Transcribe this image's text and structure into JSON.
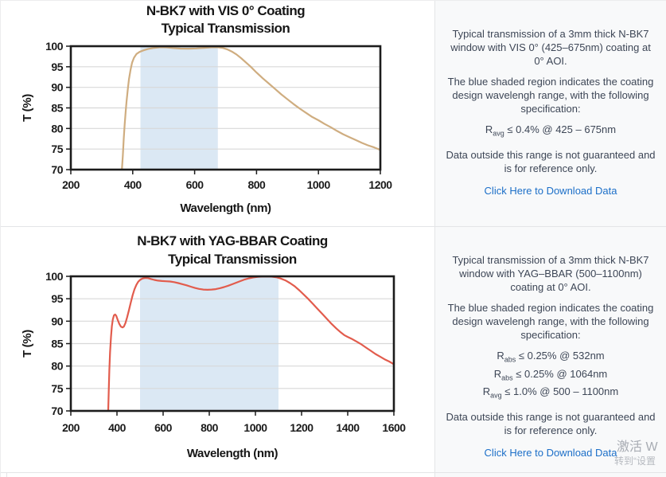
{
  "colors": {
    "vis_curve": "#cfad80",
    "yag_curve": "#e25c4d",
    "shaded_region": "#dbe8f4",
    "gridline": "#d8d8d8",
    "plot_border": "#1c1c1c",
    "panel_bg": "#f8f9fa",
    "panel_text": "#3d4656",
    "link": "#1c6fc8"
  },
  "chart_data": [
    {
      "type": "line",
      "title_line1": "N-BK7 with VIS 0° Coating",
      "title_line2": "Typical Transmission",
      "xlabel": "Wavelength (nm)",
      "ylabel": "T (%)",
      "xlim": [
        200,
        1200
      ],
      "ylim": [
        70,
        100
      ],
      "x_ticks": [
        200,
        400,
        600,
        800,
        1000,
        1200
      ],
      "y_ticks": [
        70,
        75,
        80,
        85,
        90,
        95,
        100
      ],
      "grid": "horizontal",
      "legend": "none",
      "shaded_region": {
        "from": 425,
        "to": 675
      },
      "series": [
        {
          "name": "VIS 0° coating transmission",
          "points": [
            [
              365,
              70
            ],
            [
              368,
              73.5
            ],
            [
              371,
              77.5
            ],
            [
              374,
              81
            ],
            [
              377,
              84
            ],
            [
              380,
              86.5
            ],
            [
              384,
              89.5
            ],
            [
              388,
              92
            ],
            [
              393,
              94.3
            ],
            [
              398,
              96
            ],
            [
              404,
              97.2
            ],
            [
              412,
              98.1
            ],
            [
              422,
              98.6
            ],
            [
              435,
              99
            ],
            [
              450,
              99.35
            ],
            [
              470,
              99.6
            ],
            [
              490,
              99.75
            ],
            [
              510,
              99.7
            ],
            [
              530,
              99.55
            ],
            [
              555,
              99.42
            ],
            [
              580,
              99.4
            ],
            [
              605,
              99.45
            ],
            [
              630,
              99.6
            ],
            [
              655,
              99.72
            ],
            [
              675,
              99.75
            ],
            [
              690,
              99.6
            ],
            [
              705,
              99.25
            ],
            [
              720,
              98.7
            ],
            [
              735,
              98
            ],
            [
              750,
              97.1
            ],
            [
              765,
              96.1
            ],
            [
              780,
              95.1
            ],
            [
              800,
              93.6
            ],
            [
              820,
              92.2
            ],
            [
              840,
              90.9
            ],
            [
              860,
              89.6
            ],
            [
              880,
              88.3
            ],
            [
              900,
              87.1
            ],
            [
              920,
              85.9
            ],
            [
              940,
              84.8
            ],
            [
              960,
              83.8
            ],
            [
              980,
              82.8
            ],
            [
              1000,
              82
            ],
            [
              1020,
              81.1
            ],
            [
              1040,
              80.3
            ],
            [
              1060,
              79.4
            ],
            [
              1080,
              78.6
            ],
            [
              1100,
              77.9
            ],
            [
              1120,
              77.2
            ],
            [
              1140,
              76.5
            ],
            [
              1160,
              75.9
            ],
            [
              1180,
              75.4
            ],
            [
              1200,
              74.8
            ]
          ]
        }
      ]
    },
    {
      "type": "line",
      "title_line1": "N-BK7 with YAG-BBAR Coating",
      "title_line2": "Typical Transmission",
      "xlabel": "Wavelength (nm)",
      "ylabel": "T (%)",
      "xlim": [
        200,
        1600
      ],
      "ylim": [
        70,
        100
      ],
      "x_ticks": [
        200,
        400,
        600,
        800,
        1000,
        1200,
        1400,
        1600
      ],
      "y_ticks": [
        70,
        75,
        80,
        85,
        90,
        95,
        100
      ],
      "grid": "horizontal",
      "legend": "none",
      "shaded_region": {
        "from": 500,
        "to": 1100
      },
      "series": [
        {
          "name": "YAG-BBAR coating transmission",
          "points": [
            [
              362,
              70
            ],
            [
              364,
              74
            ],
            [
              367,
              79
            ],
            [
              370,
              83
            ],
            [
              374,
              86.5
            ],
            [
              378,
              88.9
            ],
            [
              382,
              90.4
            ],
            [
              387,
              91.3
            ],
            [
              392,
              91.5
            ],
            [
              397,
              91.2
            ],
            [
              403,
              90.3
            ],
            [
              410,
              89.4
            ],
            [
              417,
              88.8
            ],
            [
              424,
              88.6
            ],
            [
              430,
              88.8
            ],
            [
              437,
              89.6
            ],
            [
              444,
              90.9
            ],
            [
              452,
              92.5
            ],
            [
              460,
              94.2
            ],
            [
              468,
              95.8
            ],
            [
              476,
              97.1
            ],
            [
              484,
              98.1
            ],
            [
              492,
              98.8
            ],
            [
              500,
              99.2
            ],
            [
              510,
              99.5
            ],
            [
              522,
              99.65
            ],
            [
              535,
              99.6
            ],
            [
              548,
              99.4
            ],
            [
              562,
              99.2
            ],
            [
              578,
              99.05
            ],
            [
              595,
              98.95
            ],
            [
              612,
              98.9
            ],
            [
              630,
              98.85
            ],
            [
              648,
              98.7
            ],
            [
              666,
              98.5
            ],
            [
              684,
              98.25
            ],
            [
              702,
              98
            ],
            [
              720,
              97.7
            ],
            [
              738,
              97.4
            ],
            [
              756,
              97.2
            ],
            [
              774,
              97.05
            ],
            [
              792,
              97
            ],
            [
              810,
              97.05
            ],
            [
              828,
              97.15
            ],
            [
              846,
              97.35
            ],
            [
              864,
              97.6
            ],
            [
              882,
              97.9
            ],
            [
              900,
              98.25
            ],
            [
              918,
              98.6
            ],
            [
              936,
              98.95
            ],
            [
              954,
              99.3
            ],
            [
              972,
              99.55
            ],
            [
              990,
              99.75
            ],
            [
              1010,
              99.88
            ],
            [
              1030,
              99.95
            ],
            [
              1050,
              99.97
            ],
            [
              1070,
              99.93
            ],
            [
              1090,
              99.8
            ],
            [
              1110,
              99.5
            ],
            [
              1130,
              99.1
            ],
            [
              1150,
              98.5
            ],
            [
              1170,
              97.8
            ],
            [
              1190,
              96.9
            ],
            [
              1210,
              95.9
            ],
            [
              1230,
              94.9
            ],
            [
              1250,
              93.8
            ],
            [
              1270,
              92.7
            ],
            [
              1290,
              91.6
            ],
            [
              1310,
              90.5
            ],
            [
              1330,
              89.4
            ],
            [
              1350,
              88.4
            ],
            [
              1370,
              87.5
            ],
            [
              1385,
              86.9
            ],
            [
              1400,
              86.5
            ],
            [
              1420,
              86
            ],
            [
              1440,
              85.4
            ],
            [
              1460,
              84.8
            ],
            [
              1480,
              84.1
            ],
            [
              1500,
              83.4
            ],
            [
              1520,
              82.7
            ],
            [
              1540,
              82.1
            ],
            [
              1560,
              81.5
            ],
            [
              1580,
              81
            ],
            [
              1600,
              80.4
            ]
          ]
        }
      ]
    }
  ],
  "sections": [
    {
      "info": {
        "p1": "Typical transmission of a 3mm thick N-BK7 window with VIS 0° (425–675nm) coating at 0° AOI.",
        "p2": "The blue shaded region indicates the coating design wavelengh range, with the following specification:",
        "specs": [
          {
            "base": "R",
            "sub": "avg",
            "text": " ≤ 0.4% @ 425 – 675nm"
          }
        ],
        "p3": "Data outside this range is not guaranteed and is for reference only.",
        "link": "Click Here to Download Data"
      }
    },
    {
      "info": {
        "p1": "Typical transmission of a 3mm thick N-BK7 window with YAG–BBAR (500–1100nm) coating at 0° AOI.",
        "p2": "The blue shaded region indicates the coating design wavelengh range, with the following specification:",
        "specs": [
          {
            "base": "R",
            "sub": "abs",
            "text": " ≤ 0.25% @ 532nm"
          },
          {
            "base": "R",
            "sub": "abs",
            "text": " ≤ 0.25% @ 1064nm"
          },
          {
            "base": "R",
            "sub": "avg",
            "text": " ≤ 1.0% @ 500 – 1100nm"
          }
        ],
        "p3": "Data outside this range is not guaranteed and is for reference only.",
        "link": "Click Here to Download Data"
      }
    }
  ],
  "watermark": {
    "line1": "激活 W",
    "line2": "转到“设置"
  }
}
